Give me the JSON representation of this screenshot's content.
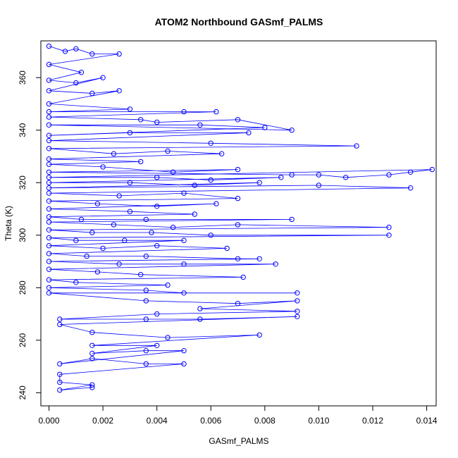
{
  "chart_data": {
    "type": "scatter",
    "title": "ATOM2 Northbound GASmf_PALMS",
    "xlabel": "GASmf_PALMS",
    "ylabel": "Theta (K)",
    "xlim": [
      -0.0003,
      0.01435
    ],
    "ylim": [
      235,
      374
    ],
    "x_ticks": [
      0.0,
      0.002,
      0.004,
      0.006,
      0.008,
      0.01,
      0.012,
      0.014
    ],
    "x_tick_labels": [
      "0.000",
      "0.002",
      "0.004",
      "0.006",
      "0.008",
      "0.010",
      "0.012",
      "0.014"
    ],
    "y_ticks": [
      240,
      260,
      280,
      300,
      320,
      340,
      360
    ],
    "y_tick_labels": [
      "240",
      "260",
      "280",
      "300",
      "320",
      "340",
      "360"
    ],
    "grid": false,
    "legend": "none",
    "colors": {
      "series": "#0000ff",
      "frame": "#000000"
    },
    "series": [
      {
        "style": "points-with-connecting-lines",
        "points": [
          [
            0.0,
            372
          ],
          [
            0.0006,
            370
          ],
          [
            0.001,
            371
          ],
          [
            0.0016,
            369
          ],
          [
            0.0026,
            369
          ],
          [
            0.0,
            365
          ],
          [
            0.0012,
            362
          ],
          [
            0.0,
            359
          ],
          [
            0.001,
            358
          ],
          [
            0.002,
            360
          ],
          [
            0.0,
            355
          ],
          [
            0.0016,
            354
          ],
          [
            0.0026,
            355
          ],
          [
            0.0,
            350
          ],
          [
            0.003,
            348
          ],
          [
            0.0,
            347
          ],
          [
            0.005,
            347
          ],
          [
            0.0062,
            347
          ],
          [
            0.0,
            345
          ],
          [
            0.0034,
            344
          ],
          [
            0.004,
            343
          ],
          [
            0.007,
            344
          ],
          [
            0.009,
            340
          ],
          [
            0.0,
            342
          ],
          [
            0.0056,
            342
          ],
          [
            0.008,
            341
          ],
          [
            0.0,
            338
          ],
          [
            0.003,
            339
          ],
          [
            0.0074,
            339
          ],
          [
            0.0,
            336
          ],
          [
            0.006,
            335
          ],
          [
            0.0114,
            334
          ],
          [
            0.0,
            333
          ],
          [
            0.0024,
            331
          ],
          [
            0.0044,
            332
          ],
          [
            0.0064,
            331
          ],
          [
            0.0,
            329
          ],
          [
            0.0034,
            328
          ],
          [
            0.0,
            327
          ],
          [
            0.002,
            326
          ],
          [
            0.0046,
            324
          ],
          [
            0.007,
            325
          ],
          [
            0.0,
            324
          ],
          [
            0.009,
            323
          ],
          [
            0.01,
            323
          ],
          [
            0.011,
            322
          ],
          [
            0.0126,
            323
          ],
          [
            0.0134,
            324
          ],
          [
            0.0142,
            325
          ],
          [
            0.0,
            322
          ],
          [
            0.004,
            322
          ],
          [
            0.006,
            321
          ],
          [
            0.0086,
            322
          ],
          [
            0.0,
            320
          ],
          [
            0.003,
            320
          ],
          [
            0.0054,
            319
          ],
          [
            0.0078,
            320
          ],
          [
            0.0,
            318
          ],
          [
            0.01,
            319
          ],
          [
            0.0134,
            318
          ],
          [
            0.0,
            316
          ],
          [
            0.0026,
            315
          ],
          [
            0.005,
            316
          ],
          [
            0.007,
            314
          ],
          [
            0.0,
            313
          ],
          [
            0.0018,
            312
          ],
          [
            0.004,
            311
          ],
          [
            0.0062,
            312
          ],
          [
            0.0,
            310
          ],
          [
            0.003,
            309
          ],
          [
            0.0054,
            308
          ],
          [
            0.0,
            307
          ],
          [
            0.0012,
            306
          ],
          [
            0.0036,
            306
          ],
          [
            0.009,
            306
          ],
          [
            0.0,
            305
          ],
          [
            0.0024,
            304
          ],
          [
            0.0046,
            303
          ],
          [
            0.007,
            304
          ],
          [
            0.0126,
            303
          ],
          [
            0.0,
            302
          ],
          [
            0.0016,
            301
          ],
          [
            0.0038,
            301
          ],
          [
            0.006,
            300
          ],
          [
            0.0126,
            300
          ],
          [
            0.0,
            299
          ],
          [
            0.001,
            298
          ],
          [
            0.0028,
            298
          ],
          [
            0.005,
            298
          ],
          [
            0.0,
            296
          ],
          [
            0.002,
            295
          ],
          [
            0.004,
            296
          ],
          [
            0.0066,
            295
          ],
          [
            0.0,
            293
          ],
          [
            0.0014,
            292
          ],
          [
            0.0036,
            292
          ],
          [
            0.007,
            291
          ],
          [
            0.0078,
            291
          ],
          [
            0.0,
            290
          ],
          [
            0.0026,
            289
          ],
          [
            0.005,
            289
          ],
          [
            0.0084,
            289
          ],
          [
            0.0,
            287
          ],
          [
            0.0018,
            286
          ],
          [
            0.0034,
            285
          ],
          [
            0.0072,
            284
          ],
          [
            0.0,
            283
          ],
          [
            0.001,
            282
          ],
          [
            0.0044,
            281
          ],
          [
            0.0,
            280
          ],
          [
            0.0036,
            279
          ],
          [
            0.005,
            278
          ],
          [
            0.0092,
            278
          ],
          [
            0.0,
            278
          ],
          [
            0.0036,
            275
          ],
          [
            0.007,
            274
          ],
          [
            0.0092,
            275
          ],
          [
            0.0056,
            272
          ],
          [
            0.0092,
            271
          ],
          [
            0.004,
            270
          ],
          [
            0.0004,
            268
          ],
          [
            0.0036,
            268
          ],
          [
            0.0056,
            268
          ],
          [
            0.0092,
            269
          ],
          [
            0.0004,
            266
          ],
          [
            0.0016,
            263
          ],
          [
            0.0044,
            261
          ],
          [
            0.0078,
            262
          ],
          [
            0.0016,
            258
          ],
          [
            0.004,
            258
          ],
          [
            0.0016,
            255
          ],
          [
            0.0036,
            256
          ],
          [
            0.005,
            256
          ],
          [
            0.0004,
            251
          ],
          [
            0.0016,
            253
          ],
          [
            0.0036,
            251
          ],
          [
            0.005,
            251
          ],
          [
            0.0004,
            247
          ],
          [
            0.0004,
            244
          ],
          [
            0.0016,
            243
          ],
          [
            0.0004,
            241
          ],
          [
            0.0016,
            242
          ]
        ]
      }
    ]
  }
}
